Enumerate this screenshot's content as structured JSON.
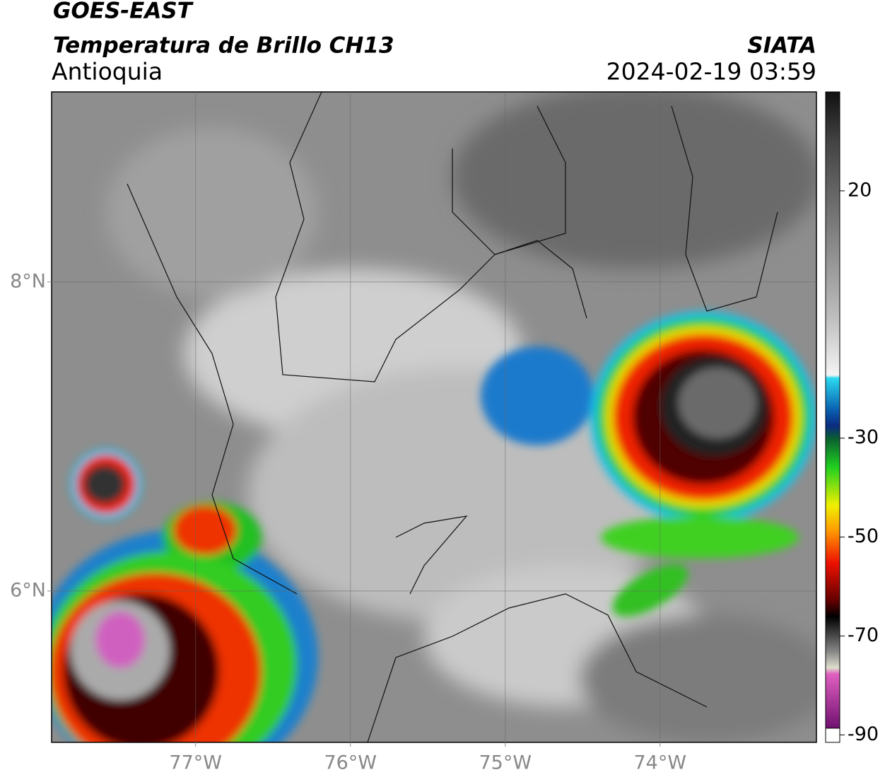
{
  "header": {
    "title": "GOES-EAST",
    "subtitle": "Temperatura de Brillo CH13",
    "region": "Antioquia",
    "source": "SIATA",
    "datetime": "2024-02-19 03:59"
  },
  "map": {
    "xlim": [
      -77.93,
      -72.99
    ],
    "ylim": [
      5.02,
      9.23
    ],
    "xticks": [
      {
        "value": -77,
        "label": "77°W"
      },
      {
        "value": -76,
        "label": "76°W"
      },
      {
        "value": -75,
        "label": "75°W"
      },
      {
        "value": -74,
        "label": "74°W"
      }
    ],
    "yticks": [
      {
        "value": 8,
        "label": "8°N"
      },
      {
        "value": 6,
        "label": "6°N"
      }
    ],
    "grid": true
  },
  "colorbar": {
    "lim": [
      -91.5,
      40
    ],
    "ticks": [
      20,
      -30,
      -50,
      -70,
      -90
    ]
  }
}
